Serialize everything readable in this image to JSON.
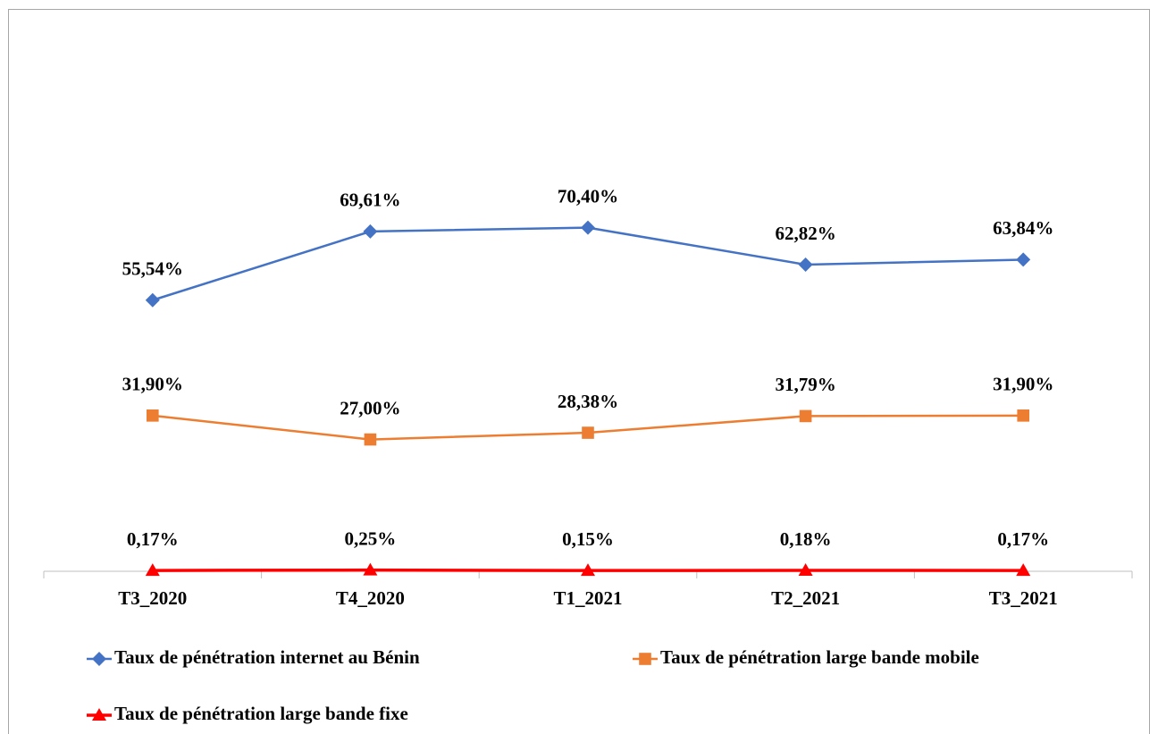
{
  "chart_data": {
    "type": "line",
    "categories": [
      "T3_2020",
      "T4_2020",
      "T1_2021",
      "T2_2021",
      "T3_2021"
    ],
    "series": [
      {
        "name": "Taux de pénétration internet au Bénin",
        "color": "#4472c4",
        "marker": "diamond",
        "values": [
          55.54,
          69.61,
          70.4,
          62.82,
          63.84
        ],
        "value_labels": [
          "55,54%",
          "69,61%",
          "70,40%",
          "62,82%",
          "63,84%"
        ]
      },
      {
        "name": "Taux de pénétration large bande mobile",
        "color": "#ed7d31",
        "marker": "square",
        "values": [
          31.9,
          27.0,
          28.38,
          31.79,
          31.9
        ],
        "value_labels": [
          "31,90%",
          "27,00%",
          "28,38%",
          "31,79%",
          "31,90%"
        ]
      },
      {
        "name": "Taux de pénétration large bande fixe",
        "color": "#ff0000",
        "marker": "triangle",
        "values": [
          0.17,
          0.25,
          0.15,
          0.18,
          0.17
        ],
        "value_labels": [
          "0,17%",
          "0,25%",
          "0,15%",
          "0,18%",
          "0,17%"
        ]
      }
    ],
    "ylim": [
      0,
      100
    ]
  }
}
